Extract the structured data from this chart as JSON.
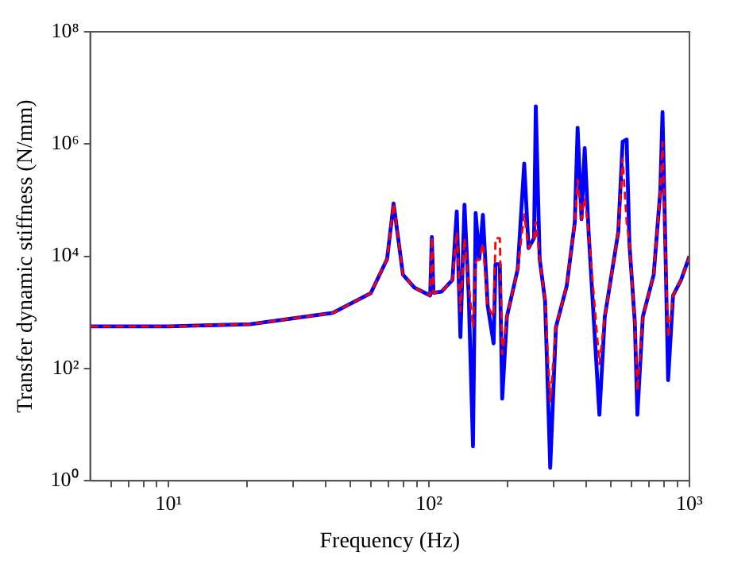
{
  "chart_data": {
    "type": "line",
    "xlabel": "Frequency (Hz)",
    "ylabel": "Transfer dynamic stiffness (N/mm)",
    "log": "xy",
    "grid": false,
    "legend": false,
    "marker": "none",
    "x": [
      5,
      10,
      20.6,
      42.7,
      59.7,
      69,
      73.1,
      79.4,
      87.9,
      101,
      102.5,
      104,
      111.7,
      123,
      127.8,
      132,
      136.8,
      142,
      147.5,
      151,
      156,
      161,
      168,
      177,
      180,
      187,
      191,
      199,
      219,
      232,
      241,
      253,
      257,
      266,
      279,
      292,
      307,
      338,
      363,
      372,
      385,
      396,
      410,
      451,
      473,
      533,
      554,
      574,
      588,
      617,
      631,
      662,
      729,
      773,
      788,
      811,
      828,
      865,
      929,
      1000
    ],
    "series": [
      {
        "color": "#0000ff",
        "line_style": "solid",
        "values": [
          562,
          562,
          617,
          977,
          2190,
          8900,
          87000,
          4700,
          2750,
          2000,
          22000,
          2240,
          2340,
          3800,
          63000,
          363,
          83000,
          2000,
          4.1,
          59000,
          8900,
          55000,
          1300,
          280,
          7200,
          7200,
          29,
          830,
          5900,
          450000,
          14000,
          21000,
          4700000,
          8900,
          1600,
          1.7,
          540,
          3000,
          41000,
          1950000,
          46000,
          850000,
          27000,
          15,
          830,
          27000,
          1100000,
          1200000,
          17000,
          660,
          15,
          830,
          4700,
          150000,
          3700000,
          7200,
          62,
          2000,
          3800,
          10000
        ]
      },
      {
        "color": "#ff0000",
        "line_style": "dashed",
        "values": [
          562,
          562,
          617,
          977,
          2190,
          8900,
          87000,
          4700,
          2750,
          2000,
          22000,
          2240,
          2340,
          3800,
          27000,
          1050,
          21000,
          3200,
          540,
          8100,
          8900,
          17000,
          1300,
          830,
          21000,
          21000,
          180,
          830,
          5900,
          56000,
          14000,
          21000,
          41000,
          8900,
          1600,
          26,
          540,
          3000,
          41000,
          230000,
          46000,
          110000,
          27000,
          120,
          830,
          27000,
          550000,
          40000,
          17000,
          660,
          40,
          830,
          4700,
          150000,
          1070000,
          7200,
          350,
          2000,
          3800,
          10000
        ]
      }
    ],
    "xlim": [
      5,
      1000
    ],
    "xticks": [
      {
        "value": 6,
        "label": null
      },
      {
        "value": 7,
        "label": null
      },
      {
        "value": 8,
        "label": null
      },
      {
        "value": 9,
        "label": null
      },
      {
        "value": 10,
        "label": "10¹"
      },
      {
        "value": 20,
        "label": null
      },
      {
        "value": 30,
        "label": null
      },
      {
        "value": 40,
        "label": null
      },
      {
        "value": 50,
        "label": null
      },
      {
        "value": 60,
        "label": null
      },
      {
        "value": 70,
        "label": null
      },
      {
        "value": 80,
        "label": null
      },
      {
        "value": 90,
        "label": null
      },
      {
        "value": 100,
        "label": "10²"
      },
      {
        "value": 200,
        "label": null
      },
      {
        "value": 300,
        "label": null
      },
      {
        "value": 400,
        "label": null
      },
      {
        "value": 500,
        "label": null
      },
      {
        "value": 600,
        "label": null
      },
      {
        "value": 700,
        "label": null
      },
      {
        "value": 800,
        "label": null
      },
      {
        "value": 900,
        "label": null
      },
      {
        "value": 1000,
        "label": "10³"
      }
    ],
    "ylim": [
      1,
      100000000
    ],
    "yticks": [
      {
        "value": 1,
        "label": "10⁰"
      },
      {
        "value": 100,
        "label": "10²"
      },
      {
        "value": 10000,
        "label": "10⁴"
      },
      {
        "value": 1000000,
        "label": "10⁶"
      },
      {
        "value": 100000000,
        "label": "10⁸"
      }
    ]
  }
}
